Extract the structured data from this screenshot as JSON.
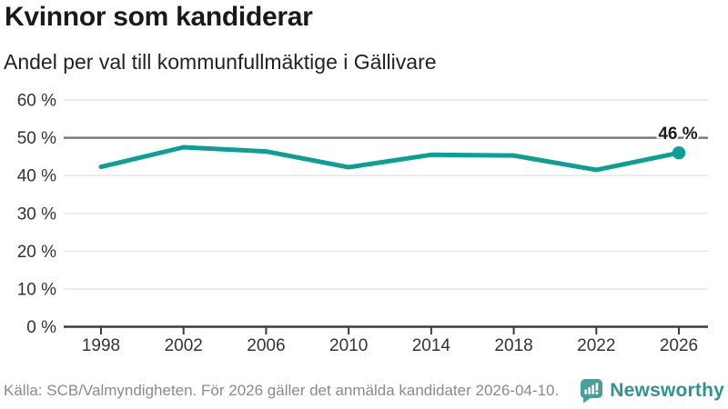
{
  "header": {
    "title": "Kvinnor som kandiderar",
    "subtitle": "Andel per val till kommunfullmäktige i Gällivare"
  },
  "chart_data": {
    "type": "line",
    "title": "Kvinnor som kandiderar",
    "subtitle": "Andel per val till kommunfullmäktige i Gällivare",
    "categories": [
      "1998",
      "2002",
      "2006",
      "2010",
      "2014",
      "2018",
      "2022",
      "2026"
    ],
    "values": [
      42.3,
      47.5,
      46.4,
      42.2,
      45.5,
      45.3,
      41.5,
      46
    ],
    "unit": "%",
    "ylim": [
      0,
      60
    ],
    "y_tick_step": 10,
    "y_tick_labels": [
      "0 %",
      "10 %",
      "20 %",
      "30 %",
      "40 %",
      "50 %",
      "60 %"
    ],
    "x_tick_labels": [
      "1998",
      "2002",
      "2006",
      "2010",
      "2014",
      "2018",
      "2022",
      "2026"
    ],
    "reference_line_value": 50,
    "last_point_label": "46 %",
    "grid": true,
    "legend_position": "none"
  },
  "colors": {
    "line": "#0d9e94",
    "grid": "#e4e4e4",
    "reference_line": "#7a7a7a",
    "axis": "#3c3c3c",
    "annotation_text": "#1a1a1a",
    "axis_text": "#333333",
    "title_text": "#1a1a1a",
    "footer_text": "#8a8a8a",
    "brand_text": "#2f948c",
    "logo_bg": "#45a19a"
  },
  "footer": {
    "source": "Källa: SCB/Valmyndigheten. För 2026 gäller det anmälda kandidater 2026-04-10.",
    "brand": "Newsworthy"
  }
}
